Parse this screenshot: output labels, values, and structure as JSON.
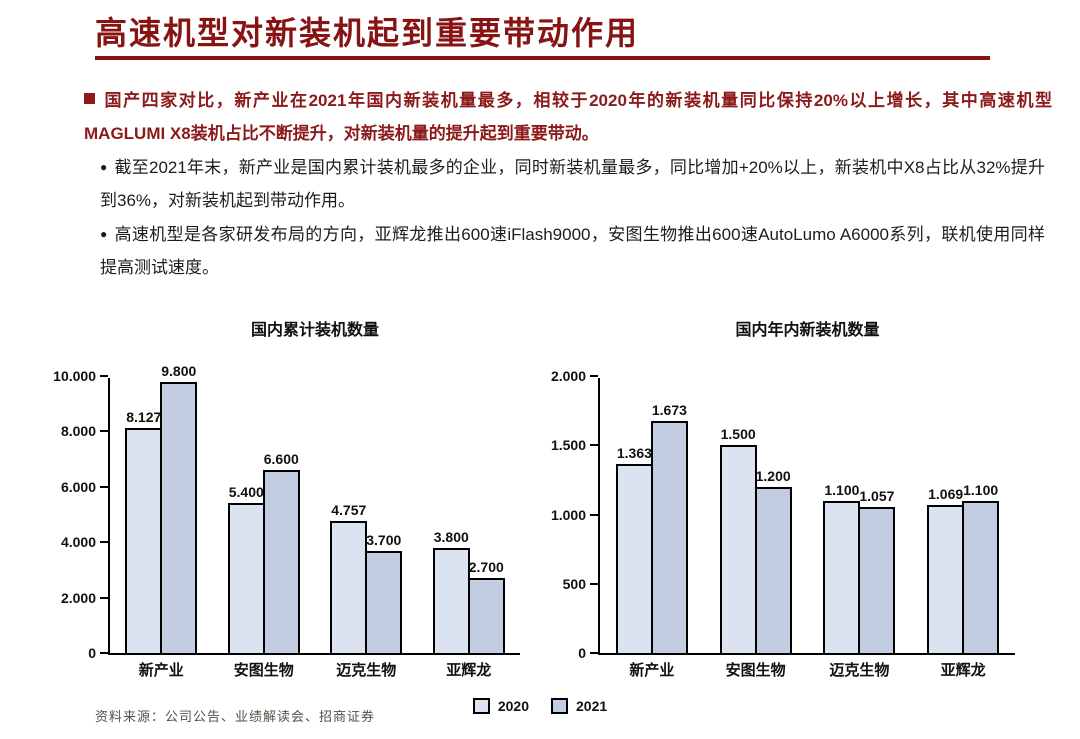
{
  "title": {
    "text": "高速机型对新装机起到重要带动作用",
    "color": "#871313"
  },
  "bullets": {
    "level1": "国产四家对比，新产业在2021年国内新装机量最多，相较于2020年的新装机量同比保持20%以上增长，其中高速机型MAGLUMI X8装机占比不断提升，对新装机量的提升起到重要带动。",
    "level2": [
      "截至2021年末，新产业是国内累计装机最多的企业，同时新装机量最多，同比增加+20%以上，新装机中X8占比从32%提升到36%，对新装机起到带动作用。",
      "高速机型是各家研发布局的方向，亚辉龙推出600速iFlash9000，安图生物推出600速AutoLumo A6000系列，联机使用同样提高测试速度。"
    ],
    "dot_char": "●"
  },
  "colors": {
    "accent_red": "#8a1212",
    "bar_2020": "#dce3f0",
    "bar_2021": "#c3cde1",
    "bar_border": "#000000",
    "text_black": "#111111"
  },
  "legend": {
    "items": [
      {
        "label": "2020",
        "color": "#dce3f0"
      },
      {
        "label": "2021",
        "color": "#c3cde1"
      }
    ]
  },
  "source": "资料来源：公司公告、业绩解读会、招商证券",
  "chart_data": [
    {
      "type": "bar",
      "title": "国内累计装机数量",
      "categories": [
        "新产业",
        "安图生物",
        "迈克生物",
        "亚辉龙"
      ],
      "series": [
        {
          "name": "2020",
          "color": "#dce3f0",
          "values": [
            8127,
            5400,
            4757,
            3800
          ],
          "labels": [
            "8.127",
            "5.400",
            "4.757",
            "3.800"
          ]
        },
        {
          "name": "2021",
          "color": "#c3cde1",
          "values": [
            9800,
            6600,
            3700,
            2700
          ],
          "labels": [
            "9.800",
            "6.600",
            "3.700",
            "2.700"
          ]
        }
      ],
      "ylim": [
        0,
        10000
      ],
      "yticks": [
        {
          "v": 0,
          "label": "0"
        },
        {
          "v": 2000,
          "label": "2.000"
        },
        {
          "v": 4000,
          "label": "4.000"
        },
        {
          "v": 6000,
          "label": "6.000"
        },
        {
          "v": 8000,
          "label": "8.000"
        },
        {
          "v": 10000,
          "label": "10.000"
        }
      ],
      "grid": false,
      "legend_position": "bottom-center-shared"
    },
    {
      "type": "bar",
      "title": "国内年内新装机数量",
      "categories": [
        "新产业",
        "安图生物",
        "迈克生物",
        "亚辉龙"
      ],
      "series": [
        {
          "name": "2020",
          "color": "#dce3f0",
          "values": [
            1363,
            1500,
            1100,
            1069
          ],
          "labels": [
            "1.363",
            "1.500",
            "1.100",
            "1.069"
          ]
        },
        {
          "name": "2021",
          "color": "#c3cde1",
          "values": [
            1673,
            1200,
            1057,
            1100
          ],
          "labels": [
            "1.673",
            "1.200",
            "1.057",
            "1.100"
          ]
        }
      ],
      "ylim": [
        0,
        2000
      ],
      "yticks": [
        {
          "v": 0,
          "label": "0"
        },
        {
          "v": 500,
          "label": "500"
        },
        {
          "v": 1000,
          "label": "1.000"
        },
        {
          "v": 1500,
          "label": "1.500"
        },
        {
          "v": 2000,
          "label": "2.000"
        }
      ],
      "grid": false,
      "legend_position": "bottom-center-shared"
    }
  ]
}
